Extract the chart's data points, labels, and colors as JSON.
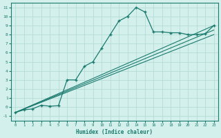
{
  "xlabel": "Humidex (Indice chaleur)",
  "bg_color": "#d4f0ec",
  "line_color": "#1a7a6e",
  "grid_color": "#b0d8d2",
  "xlim": [
    -0.5,
    23.5
  ],
  "ylim": [
    -1.5,
    11.5
  ],
  "xticks": [
    0,
    1,
    2,
    3,
    4,
    5,
    6,
    7,
    8,
    9,
    10,
    11,
    12,
    13,
    14,
    15,
    16,
    17,
    18,
    19,
    20,
    21,
    22,
    23
  ],
  "yticks": [
    -1,
    0,
    1,
    2,
    3,
    4,
    5,
    6,
    7,
    8,
    9,
    10,
    11
  ],
  "main_x": [
    0,
    1,
    2,
    3,
    4,
    5,
    6,
    7,
    8,
    9,
    10,
    11,
    12,
    13,
    14,
    15,
    16,
    17,
    18,
    19,
    20,
    21,
    22,
    23
  ],
  "main_y": [
    -0.6,
    -0.3,
    -0.2,
    0.2,
    0.1,
    0.15,
    3.0,
    3.0,
    4.5,
    5.0,
    6.5,
    8.0,
    9.5,
    10.0,
    11.0,
    10.5,
    8.3,
    8.3,
    8.2,
    8.2,
    8.0,
    8.0,
    8.1,
    9.0
  ],
  "line2_x": [
    0,
    23
  ],
  "line2_y": [
    -0.6,
    9.0
  ],
  "line3_x": [
    0,
    23
  ],
  "line3_y": [
    -0.6,
    8.5
  ],
  "line4_x": [
    0,
    23
  ],
  "line4_y": [
    -0.6,
    8.0
  ]
}
